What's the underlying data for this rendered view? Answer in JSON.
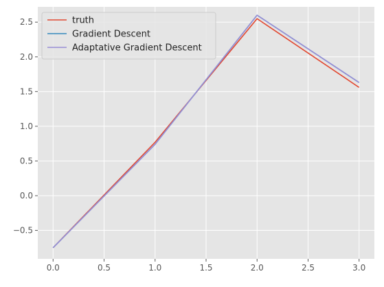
{
  "chart_data": {
    "type": "line",
    "title": "",
    "xlabel": "",
    "ylabel": "",
    "x": [
      0,
      1,
      2,
      3
    ],
    "xlim": [
      -0.15,
      3.15
    ],
    "ylim": [
      -0.91,
      2.72
    ],
    "xticks": [
      0.0,
      0.5,
      1.0,
      1.5,
      2.0,
      2.5,
      3.0
    ],
    "xtick_labels": [
      "0.0",
      "0.5",
      "1.0",
      "1.5",
      "2.0",
      "2.5",
      "3.0"
    ],
    "yticks": [
      -0.5,
      0.0,
      0.5,
      1.0,
      1.5,
      2.0,
      2.5
    ],
    "ytick_labels": [
      "−0.5",
      "0.0",
      "0.5",
      "1.0",
      "1.5",
      "2.0",
      "2.5"
    ],
    "grid": true,
    "legend_position": "upper left",
    "series": [
      {
        "name": "truth",
        "color": "#e24a33",
        "values": [
          -0.75,
          0.77,
          2.55,
          1.56
        ]
      },
      {
        "name": "Gradient Descent",
        "color": "#348abd",
        "values": [
          -0.75,
          0.74,
          2.6,
          1.63
        ]
      },
      {
        "name": "Adaptative Gradient Descent",
        "color": "#988ed5",
        "values": [
          -0.75,
          0.74,
          2.6,
          1.63
        ]
      }
    ]
  },
  "style": {
    "plot_background": "#e5e5e5",
    "grid_color": "#ffffff",
    "tick_color": "#555555"
  }
}
